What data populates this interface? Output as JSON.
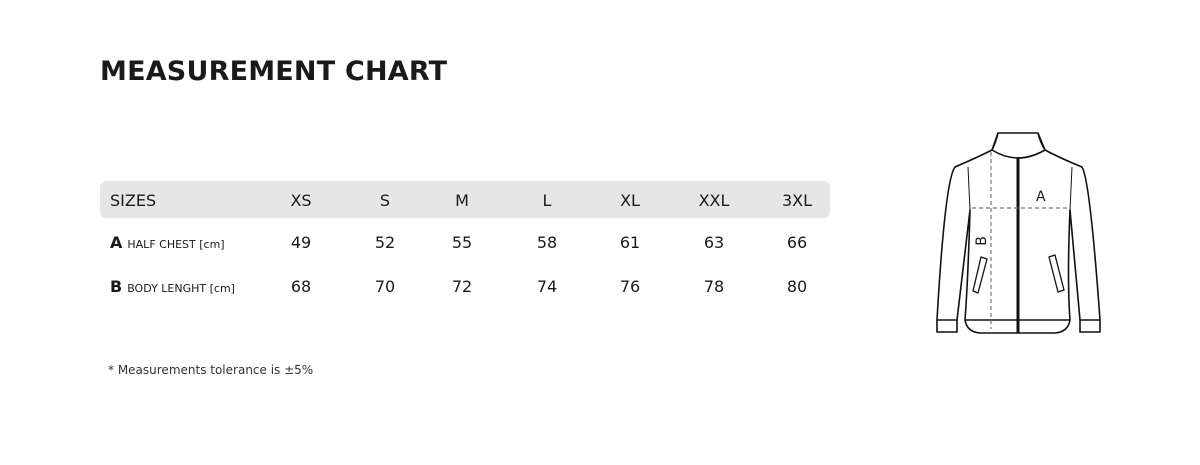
{
  "title": "MEASUREMENT CHART",
  "table": {
    "header_label": "SIZES",
    "sizes": [
      "XS",
      "S",
      "M",
      "L",
      "XL",
      "XXL",
      "3XL"
    ],
    "rows": [
      {
        "key": "A",
        "label": "HALF CHEST [cm]",
        "values": [
          "49",
          "52",
          "55",
          "58",
          "61",
          "63",
          "66"
        ]
      },
      {
        "key": "B",
        "label": "BODY LENGHT [cm]",
        "values": [
          "68",
          "70",
          "72",
          "74",
          "76",
          "78",
          "80"
        ]
      }
    ]
  },
  "note": "* Measurements tolerance is ±5%",
  "diagram": {
    "label_a": "A",
    "label_b": "B",
    "icon": "jacket-outline"
  },
  "colors": {
    "header_bg": "#e6e6e6",
    "text": "#1a1a1a"
  }
}
